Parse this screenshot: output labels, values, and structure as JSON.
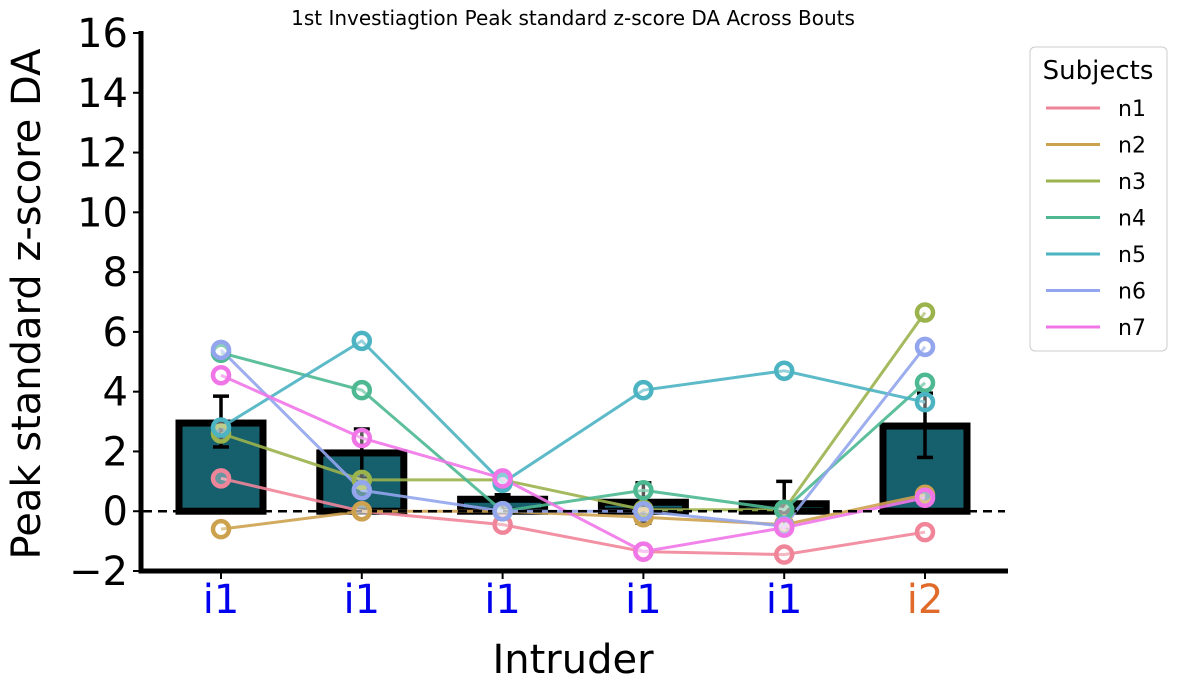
{
  "chart_data": {
    "type": "bar",
    "title": "1st Investiagtion Peak standard z-score DA Across Bouts",
    "xlabel": "Intruder",
    "ylabel": "Peak standard z-score DA",
    "ylim": [
      -2,
      16
    ],
    "yticks": [
      -2,
      0,
      2,
      4,
      6,
      8,
      10,
      12,
      14,
      16
    ],
    "categories": [
      "i1",
      "i1",
      "i1",
      "i1",
      "i1",
      "i2"
    ],
    "category_colors": [
      "#0000ee",
      "#0000ee",
      "#0000ee",
      "#0000ee",
      "#0000ee",
      "#e06a2a"
    ],
    "bar_color": "#165f6d",
    "bar_edge_color": "#000000",
    "bars": {
      "values": [
        2.95,
        1.95,
        0.4,
        0.3,
        0.25,
        2.85
      ],
      "err_low": [
        2.15,
        1.1,
        0.05,
        -0.4,
        -0.55,
        1.8
      ],
      "err_high": [
        3.85,
        2.75,
        0.55,
        0.95,
        1.0,
        3.95
      ]
    },
    "reference_line": 0,
    "legend": {
      "title": "Subjects",
      "position": "outside-right"
    },
    "series": [
      {
        "name": "n1",
        "color": "#f08599",
        "values": [
          1.1,
          0.0,
          -0.45,
          -1.35,
          -1.45,
          -0.7
        ]
      },
      {
        "name": "n2",
        "color": "#cda24f",
        "values": [
          -0.6,
          0.0,
          0.0,
          -0.2,
          -0.45,
          0.55
        ]
      },
      {
        "name": "n3",
        "color": "#9bb34c",
        "values": [
          2.6,
          1.05,
          1.05,
          0.05,
          0.05,
          6.65
        ]
      },
      {
        "name": "n4",
        "color": "#4db891",
        "values": [
          5.3,
          4.05,
          0.0,
          0.7,
          0.05,
          4.3
        ]
      },
      {
        "name": "n5",
        "color": "#4bb3c2",
        "values": [
          2.8,
          5.7,
          0.95,
          4.05,
          4.7,
          3.65
        ]
      },
      {
        "name": "n6",
        "color": "#92a5ed",
        "values": [
          5.4,
          0.7,
          0.0,
          0.0,
          -0.5,
          5.5
        ]
      },
      {
        "name": "n7",
        "color": "#f076e8",
        "values": [
          4.55,
          2.45,
          1.1,
          -1.35,
          -0.55,
          0.45
        ]
      }
    ]
  }
}
